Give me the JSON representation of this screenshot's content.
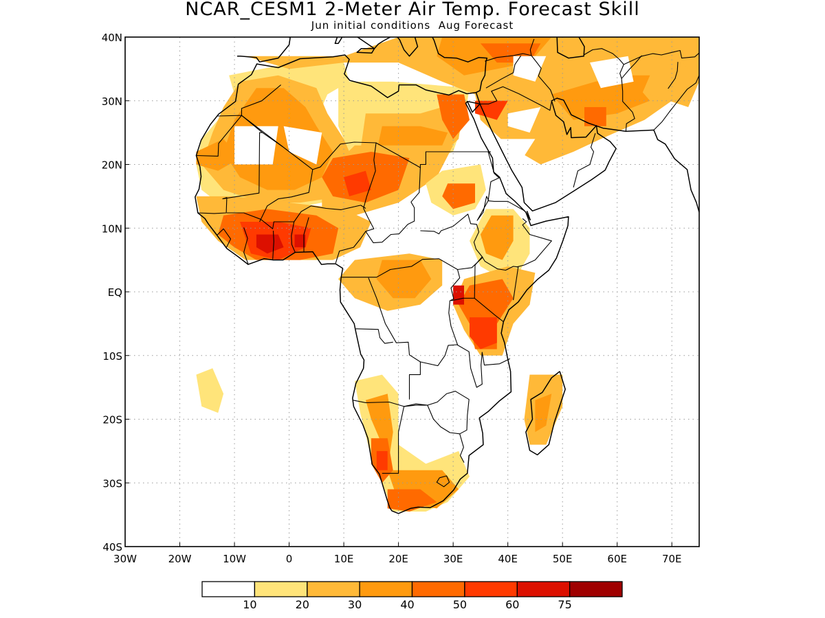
{
  "title": "NCAR_CESM1 2-Meter Air Temp. Forecast Skill",
  "subtitle": "Jun initial conditions  Aug Forecast",
  "map": {
    "lon_range": [
      -30,
      75
    ],
    "lat_range": [
      -40,
      40
    ],
    "grid": true,
    "lat_ticks": [
      {
        "lat": 40,
        "label": "40N"
      },
      {
        "lat": 30,
        "label": "30N"
      },
      {
        "lat": 20,
        "label": "20N"
      },
      {
        "lat": 10,
        "label": "10N"
      },
      {
        "lat": 0,
        "label": "EQ"
      },
      {
        "lat": -10,
        "label": "10S"
      },
      {
        "lat": -20,
        "label": "20S"
      },
      {
        "lat": -30,
        "label": "30S"
      },
      {
        "lat": -40,
        "label": "40S"
      }
    ],
    "lon_ticks": [
      {
        "lon": -30,
        "label": "30W"
      },
      {
        "lon": -20,
        "label": "20W"
      },
      {
        "lon": -10,
        "label": "10W"
      },
      {
        "lon": 0,
        "label": "0"
      },
      {
        "lon": 10,
        "label": "10E"
      },
      {
        "lon": 20,
        "label": "20E"
      },
      {
        "lon": 30,
        "label": "30E"
      },
      {
        "lon": 40,
        "label": "40E"
      },
      {
        "lon": 50,
        "label": "50E"
      },
      {
        "lon": 60,
        "label": "60E"
      },
      {
        "lon": 70,
        "label": "70E"
      }
    ]
  },
  "colorbar": {
    "colors": [
      "#ffffff",
      "#ffe47a",
      "#ffb938",
      "#ff9a0f",
      "#ff6a00",
      "#ff3a00",
      "#dc1000",
      "#9f0000"
    ],
    "labels": [
      "10",
      "20",
      "30",
      "40",
      "50",
      "60",
      "75"
    ]
  },
  "colors": {
    "land_outline": "#000000",
    "grid": "#9a9a9a"
  }
}
